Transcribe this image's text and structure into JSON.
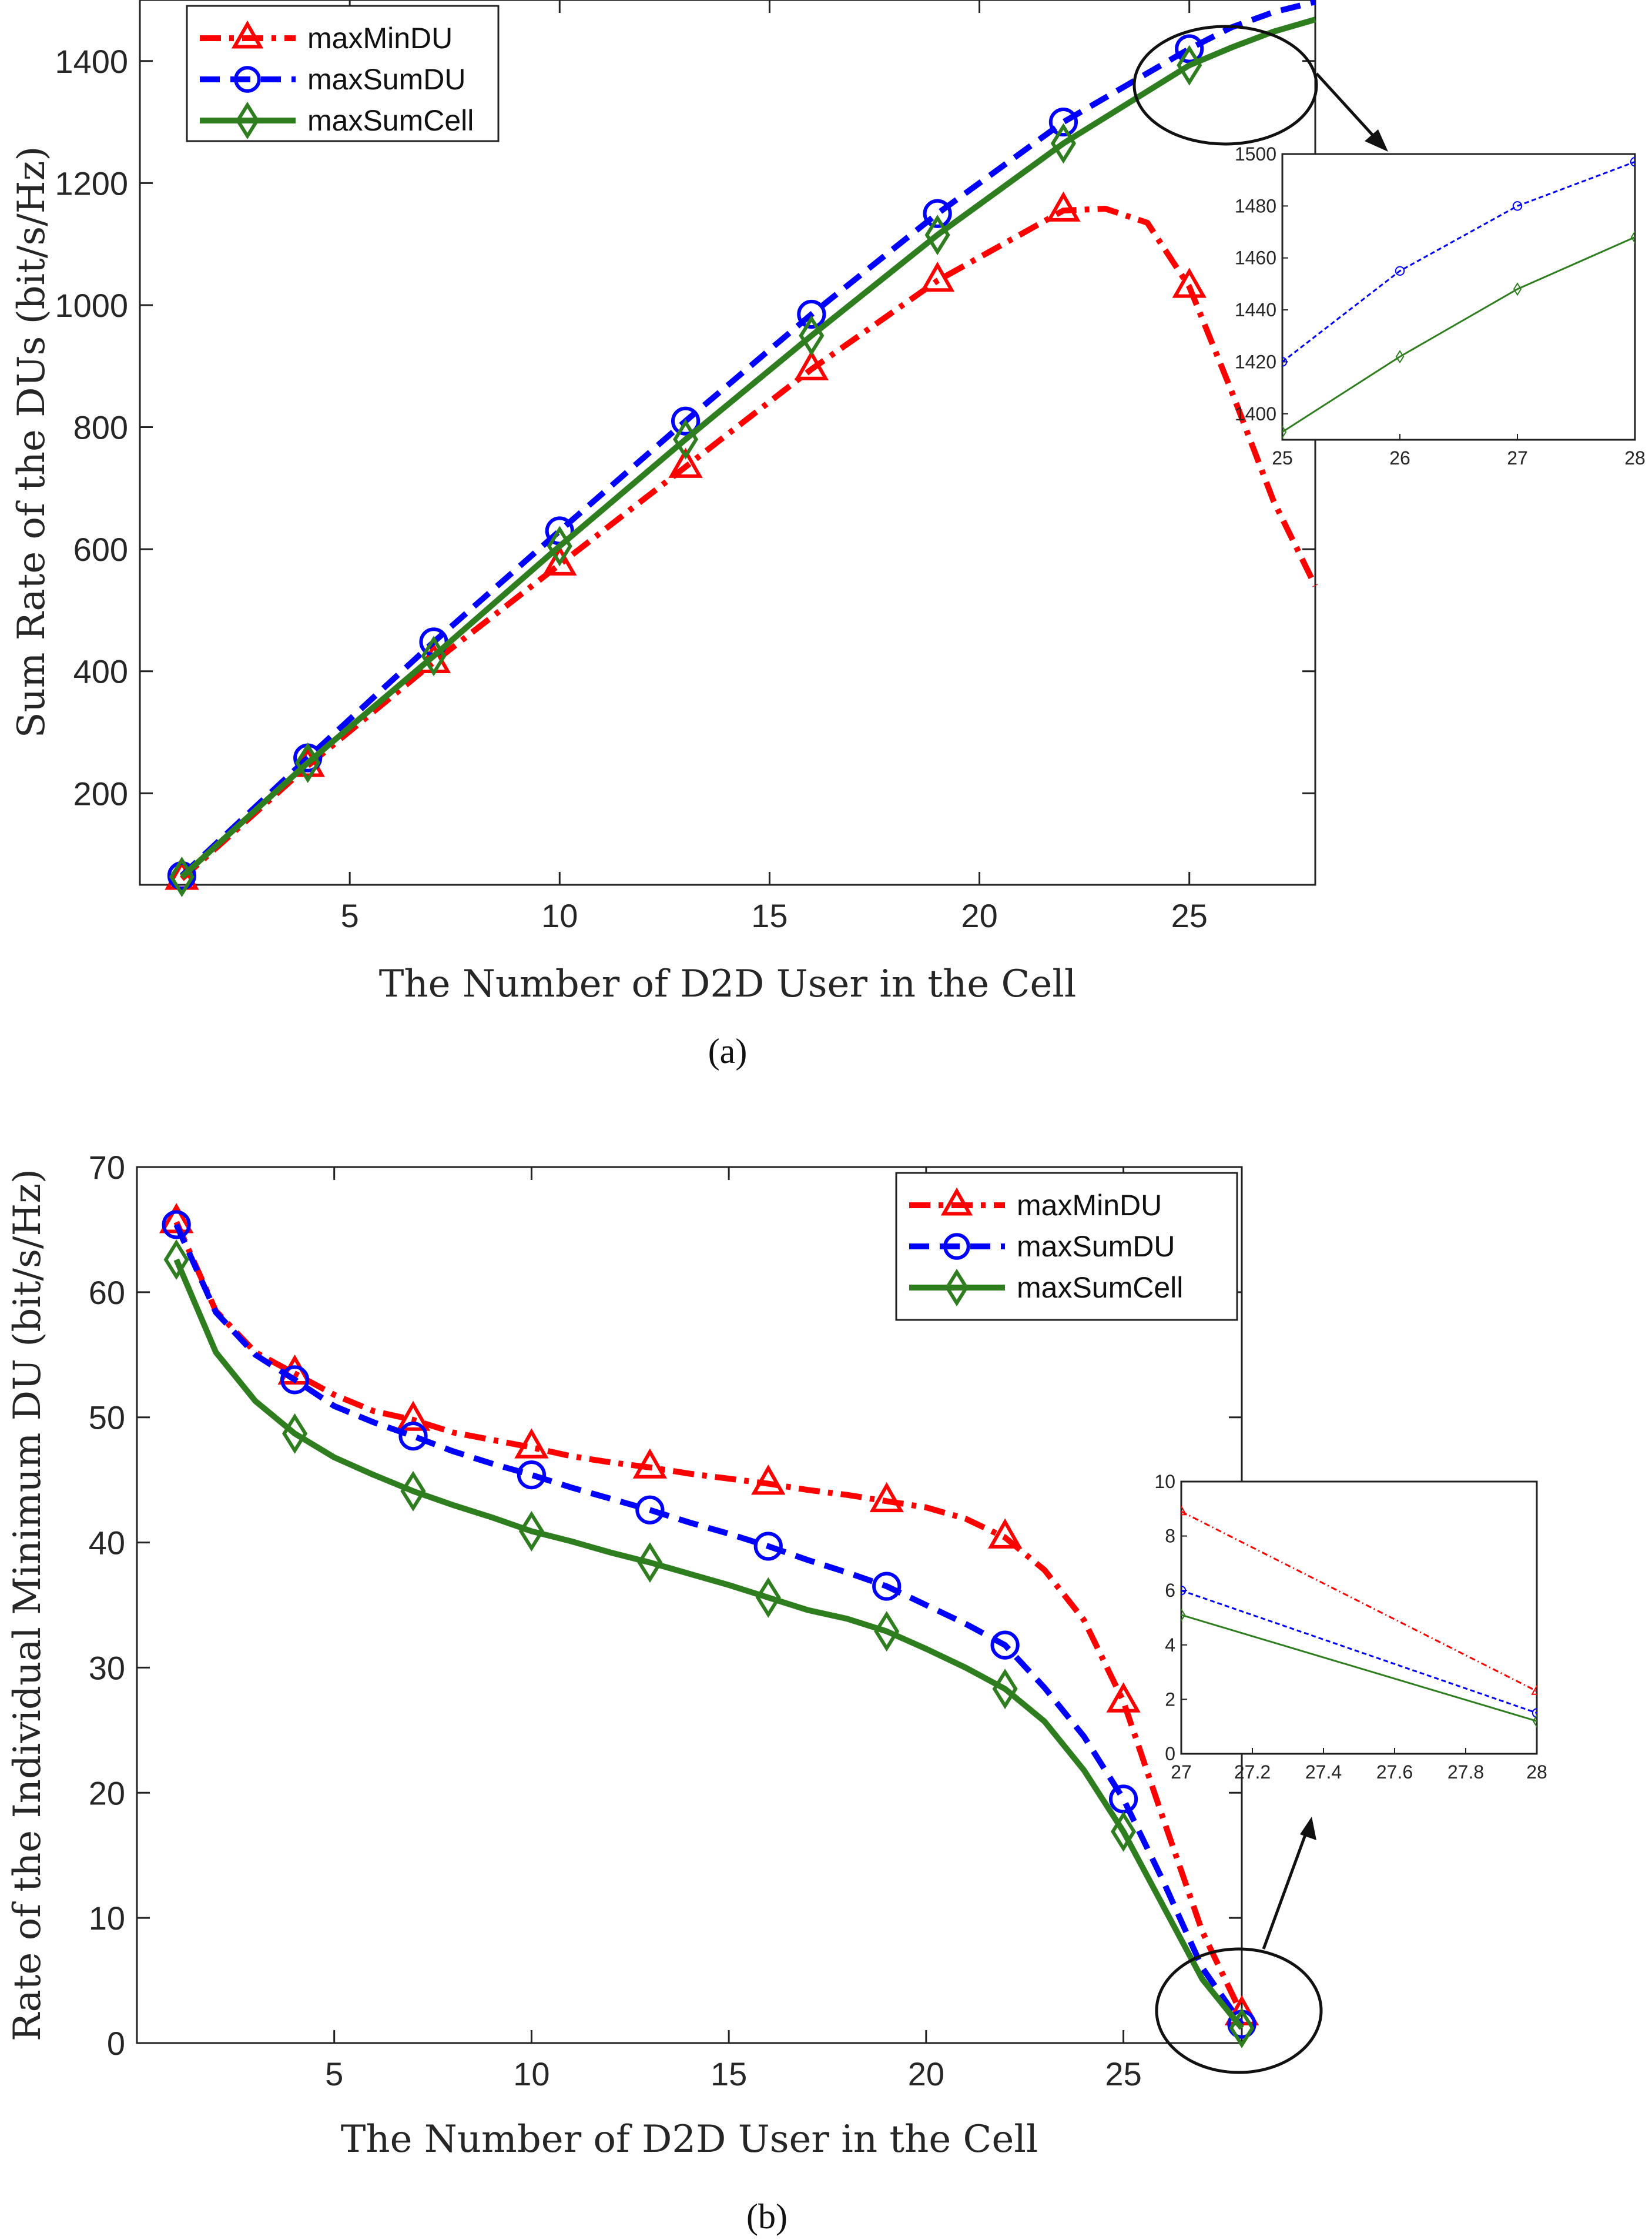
{
  "chart_data": [
    {
      "type": "line",
      "panel_label": "(a)",
      "xlabel": "The Number of D2D User in the Cell",
      "ylabel": "Sum Rate of the DUs (bit/s/Hz)",
      "xlim": [
        0,
        28
      ],
      "ylim": [
        50,
        1500
      ],
      "xticks": [
        5,
        10,
        15,
        20,
        25
      ],
      "yticks": [
        200,
        400,
        600,
        800,
        1000,
        1200,
        1400
      ],
      "legend_position": "top-left",
      "series": [
        {
          "name": "maxMinDU",
          "color": "#ff0000",
          "dash": "dashdot",
          "marker": "triangle",
          "x": [
            1,
            4,
            7,
            10,
            13,
            16,
            19,
            22,
            23,
            24,
            25,
            26,
            27,
            28
          ],
          "y": [
            60,
            245,
            415,
            575,
            735,
            895,
            1040,
            1155,
            1158,
            1135,
            1030,
            860,
            680,
            540
          ]
        },
        {
          "name": "maxSumDU",
          "color": "#0000ff",
          "dash": "dashed",
          "marker": "circle",
          "x": [
            1,
            4,
            7,
            10,
            13,
            16,
            19,
            22,
            25,
            26,
            27,
            28
          ],
          "y": [
            65,
            258,
            448,
            630,
            810,
            985,
            1150,
            1300,
            1420,
            1455,
            1480,
            1497
          ]
        },
        {
          "name": "maxSumCell",
          "color": "#2e7d1e",
          "dash": "solid",
          "marker": "diamond",
          "x": [
            1,
            4,
            7,
            10,
            13,
            16,
            19,
            22,
            25,
            26,
            27,
            28
          ],
          "y": [
            63,
            250,
            425,
            605,
            780,
            950,
            1115,
            1265,
            1393,
            1422,
            1448,
            1468
          ]
        }
      ],
      "inset": {
        "xlim": [
          25,
          28
        ],
        "ylim": [
          1390,
          1500
        ],
        "xticks": [
          25,
          26,
          27,
          28
        ],
        "yticks": [
          1400,
          1420,
          1440,
          1460,
          1480,
          1500
        ]
      }
    },
    {
      "type": "line",
      "panel_label": "(b)",
      "xlabel": "The Number of D2D User in the Cell",
      "ylabel": "Rate of the Individual Minimum DU (bit/s/Hz)",
      "xlim": [
        0,
        28
      ],
      "ylim": [
        0,
        70
      ],
      "xticks": [
        5,
        10,
        15,
        20,
        25
      ],
      "yticks": [
        0,
        10,
        20,
        30,
        40,
        50,
        60,
        70
      ],
      "legend_position": "top-right",
      "series": [
        {
          "name": "maxMinDU",
          "color": "#ff0000",
          "dash": "dashdot",
          "marker": "triangle",
          "x": [
            1,
            2,
            3,
            4,
            5,
            6,
            7,
            8,
            9,
            10,
            11,
            12,
            13,
            14,
            15,
            16,
            17,
            18,
            19,
            20,
            21,
            22,
            23,
            24,
            25,
            26,
            27,
            28
          ],
          "y": [
            65.6,
            58.5,
            55.2,
            53.5,
            51.8,
            50.5,
            49.8,
            48.8,
            48.2,
            47.6,
            46.9,
            46.4,
            46,
            45.5,
            45.1,
            44.7,
            44.2,
            43.8,
            43.3,
            42.8,
            41.9,
            40.4,
            37.8,
            33.8,
            27.3,
            18,
            8.9,
            2.3
          ]
        },
        {
          "name": "maxSumDU",
          "color": "#0000ff",
          "dash": "dashed",
          "marker": "circle",
          "x": [
            1,
            2,
            3,
            4,
            5,
            6,
            7,
            8,
            9,
            10,
            11,
            12,
            13,
            14,
            15,
            16,
            17,
            18,
            19,
            20,
            21,
            22,
            23,
            24,
            25,
            26,
            27,
            28
          ],
          "y": [
            65.4,
            58.4,
            55,
            53,
            50.9,
            49.6,
            48.5,
            47.3,
            46.3,
            45.4,
            44.4,
            43.5,
            42.6,
            41.6,
            40.7,
            39.7,
            38.6,
            37.6,
            36.5,
            35,
            33.5,
            31.8,
            28.4,
            24.5,
            19.5,
            13,
            6,
            1.5
          ]
        },
        {
          "name": "maxSumCell",
          "color": "#2e7d1e",
          "dash": "solid",
          "marker": "diamond",
          "x": [
            1,
            2,
            3,
            4,
            5,
            6,
            7,
            8,
            9,
            10,
            11,
            12,
            13,
            14,
            15,
            16,
            17,
            18,
            19,
            20,
            21,
            22,
            23,
            24,
            25,
            26,
            27,
            28
          ],
          "y": [
            62.6,
            55.2,
            51.3,
            48.7,
            46.8,
            45.4,
            44.1,
            43,
            42,
            40.9,
            40.1,
            39.2,
            38.4,
            37.5,
            36.6,
            35.6,
            34.6,
            33.9,
            32.9,
            31.5,
            30,
            28.3,
            25.7,
            21.8,
            16.9,
            11,
            5.1,
            1.2
          ]
        }
      ],
      "inset": {
        "xlim": [
          27,
          28
        ],
        "ylim": [
          0,
          10
        ],
        "xticks": [
          27,
          27.2,
          27.4,
          27.6,
          27.8,
          28
        ],
        "yticks": [
          0,
          2,
          4,
          6,
          8,
          10
        ]
      }
    }
  ]
}
